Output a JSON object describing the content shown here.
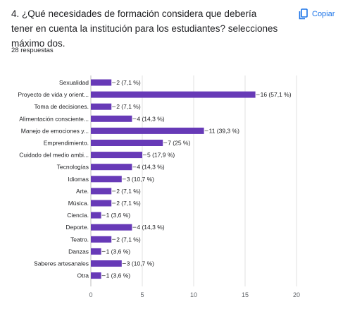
{
  "question": {
    "title": "4. ¿Qué necesidades de formación considera que debería tener en cuenta la institución para los estudiantes? selecciones máximo dos.",
    "copy_label": "Copiar",
    "responses": "28 respuestas"
  },
  "icons": {
    "copy": "copy-icon"
  },
  "colors": {
    "bar": "#673ab7",
    "grid": "#e0e0e0",
    "axis": "#bdbdbd",
    "link": "#1a73e8"
  },
  "chart_data": {
    "type": "bar",
    "orientation": "horizontal",
    "categories": [
      "Sexualidad",
      "Proyecto de vida y orient...",
      "Toma de decisiones.",
      "Alimentación consciente...",
      "Manejo de emociones y...",
      "Emprendimiento.",
      "Cuidado del medio ambi...",
      "Tecnologías",
      "Idiomas",
      "Arte.",
      "Música.",
      "Ciencia.",
      "Deporte.",
      "Teatro.",
      "Danzas",
      "Saberes artesanales",
      "Otra"
    ],
    "values": [
      2,
      16,
      2,
      4,
      11,
      7,
      5,
      4,
      3,
      2,
      2,
      1,
      4,
      2,
      1,
      3,
      1
    ],
    "value_labels": [
      "2 (7,1 %)",
      "16 (57,1 %)",
      "2 (7,1 %)",
      "4 (14,3 %)",
      "11 (39,3 %)",
      "7 (25 %)",
      "5 (17,9 %)",
      "4 (14,3 %)",
      "3 (10,7 %)",
      "2 (7,1 %)",
      "2 (7,1 %)",
      "1 (3,6 %)",
      "4 (14,3 %)",
      "2 (7,1 %)",
      "1 (3,6 %)",
      "3 (10,7 %)",
      "1 (3,6 %)"
    ],
    "xlim": [
      0,
      20
    ],
    "xticks": [
      0,
      5,
      10,
      15,
      20
    ],
    "xtick_labels": [
      "0",
      "5",
      "10",
      "15",
      "20"
    ],
    "grid": true
  }
}
